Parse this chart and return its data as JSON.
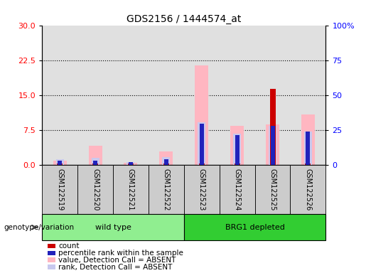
{
  "title": "GDS2156 / 1444574_at",
  "samples": [
    "GSM122519",
    "GSM122520",
    "GSM122521",
    "GSM122522",
    "GSM122523",
    "GSM122524",
    "GSM122525",
    "GSM122526"
  ],
  "group_names": [
    "wild type",
    "BRG1 depleted"
  ],
  "group_colors": [
    "#90ee90",
    "#32cd32"
  ],
  "group_boundaries": [
    0,
    4,
    8
  ],
  "count_values": [
    0.3,
    0.3,
    0.3,
    0.3,
    0.3,
    0.3,
    16.5,
    0.3
  ],
  "rank_values": [
    1.0,
    1.0,
    0.6,
    1.3,
    9.0,
    6.5,
    8.5,
    7.2
  ],
  "absent_value_values": [
    1.0,
    4.2,
    0.5,
    3.0,
    21.5,
    8.5,
    8.8,
    11.0
  ],
  "absent_rank_values": [
    1.2,
    1.6,
    0.65,
    1.7,
    9.2,
    6.8,
    8.5,
    7.3
  ],
  "left_ylim": [
    0,
    30
  ],
  "right_ylim": [
    0,
    100
  ],
  "left_yticks": [
    0,
    7.5,
    15,
    22.5,
    30
  ],
  "right_yticks": [
    0,
    25,
    50,
    75,
    100
  ],
  "right_yticklabels": [
    "0",
    "25",
    "50",
    "75",
    "100%"
  ],
  "color_count": "#cc0000",
  "color_rank": "#2222bb",
  "color_absent_value": "#ffb6c1",
  "color_absent_rank": "#c8c8ee",
  "background_plot": "#e0e0e0",
  "group_label": "genotype/variation",
  "legend_labels": [
    "count",
    "percentile rank within the sample",
    "value, Detection Call = ABSENT",
    "rank, Detection Call = ABSENT"
  ],
  "legend_colors": [
    "#cc0000",
    "#2222bb",
    "#ffb6c1",
    "#c8c8ee"
  ]
}
